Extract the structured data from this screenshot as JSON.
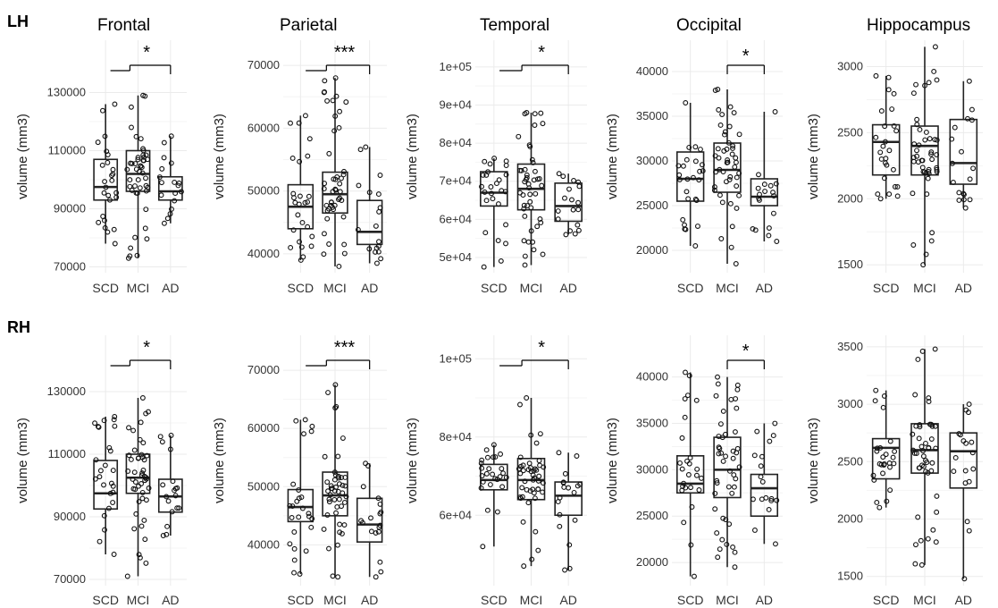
{
  "row_labels": [
    "LH",
    "RH"
  ],
  "panel_titles": [
    "Frontal",
    "Parietal",
    "Temporal",
    "Occipital",
    "Hippocampus"
  ],
  "colors": {
    "background": "#ffffff",
    "grid": "#ebebeb",
    "box": "#222222",
    "point": "#111111"
  },
  "chart_data": [
    {
      "type": "box",
      "hemisphere": "LH",
      "title": "Frontal",
      "ylabel": "volume (mm3)",
      "categories": [
        "SCD",
        "MCI",
        "AD"
      ],
      "ylim": [
        68000,
        148000
      ],
      "yticks": [
        70000,
        90000,
        110000,
        130000
      ],
      "ytick_labels": [
        "70000",
        "90000",
        "110000",
        "130000"
      ],
      "boxes": [
        {
          "min": 78000,
          "q1": 93000,
          "median": 97500,
          "q3": 107000,
          "max": 126000
        },
        {
          "min": 73000,
          "q1": 96000,
          "median": 102000,
          "q3": 110000,
          "max": 129000
        },
        {
          "min": 85000,
          "q1": 93000,
          "median": 96000,
          "q3": 101000,
          "max": 115000
        }
      ],
      "significance": {
        "label": "*",
        "bracket": "SCD+MCI vs AD"
      }
    },
    {
      "type": "box",
      "hemisphere": "LH",
      "title": "Parietal",
      "ylabel": "volume (mm3)",
      "categories": [
        "SCD",
        "MCI",
        "AD"
      ],
      "ylim": [
        37000,
        74000
      ],
      "yticks": [
        40000,
        50000,
        60000,
        70000
      ],
      "ytick_labels": [
        "40000",
        "50000",
        "60000",
        "70000"
      ],
      "boxes": [
        {
          "min": 39000,
          "q1": 44000,
          "median": 47500,
          "q3": 51000,
          "max": 62000
        },
        {
          "min": 38000,
          "q1": 46500,
          "median": 49500,
          "q3": 53000,
          "max": 68000
        },
        {
          "min": 38500,
          "q1": 41500,
          "median": 43500,
          "q3": 48500,
          "max": 57000
        }
      ],
      "significance": {
        "label": "***",
        "bracket": "SCD+MCI vs AD"
      }
    },
    {
      "type": "box",
      "hemisphere": "LH",
      "title": "Temporal",
      "ylabel": "volume (mm3)",
      "categories": [
        "SCD",
        "MCI",
        "AD"
      ],
      "ylim": [
        46000,
        107000
      ],
      "yticks": [
        50000,
        60000,
        70000,
        80000,
        90000,
        100000
      ],
      "ytick_labels": [
        "5e+04",
        "6e+04",
        "7e+04",
        "8e+04",
        "9e+04",
        "1e+05"
      ],
      "boxes": [
        {
          "min": 47500,
          "q1": 63500,
          "median": 67000,
          "q3": 72500,
          "max": 76000
        },
        {
          "min": 48000,
          "q1": 62500,
          "median": 68000,
          "q3": 74500,
          "max": 88000
        },
        {
          "min": 56000,
          "q1": 59500,
          "median": 63500,
          "q3": 69500,
          "max": 72000
        }
      ],
      "significance": {
        "label": "*",
        "bracket": "SCD+MCI vs AD"
      }
    },
    {
      "type": "box",
      "hemisphere": "LH",
      "title": "Occipital",
      "ylabel": "volume (mm3)",
      "categories": [
        "SCD",
        "MCI",
        "AD"
      ],
      "ylim": [
        17500,
        43500
      ],
      "yticks": [
        20000,
        25000,
        30000,
        35000,
        40000
      ],
      "ytick_labels": [
        "20000",
        "25000",
        "30000",
        "35000",
        "40000"
      ],
      "boxes": [
        {
          "min": 20500,
          "q1": 25500,
          "median": 28000,
          "q3": 31000,
          "max": 36500
        },
        {
          "min": 18500,
          "q1": 26500,
          "median": 29000,
          "q3": 32000,
          "max": 38000
        },
        {
          "min": 21000,
          "q1": 25000,
          "median": 26000,
          "q3": 28000,
          "max": 35500
        }
      ],
      "significance": {
        "label": "*",
        "bracket": "MCI vs AD"
      }
    },
    {
      "type": "box",
      "hemisphere": "LH",
      "title": "Hippocampus",
      "ylabel": "volume (mm3)",
      "categories": [
        "SCD",
        "MCI",
        "AD"
      ],
      "ylim": [
        1440,
        3200
      ],
      "yticks": [
        1500,
        2000,
        2500,
        3000
      ],
      "ytick_labels": [
        "1500",
        "2000",
        "2500",
        "3000"
      ],
      "boxes": [
        {
          "min": 2000,
          "q1": 2180,
          "median": 2430,
          "q3": 2560,
          "max": 2930
        },
        {
          "min": 1500,
          "q1": 2180,
          "median": 2400,
          "q3": 2550,
          "max": 3150
        },
        {
          "min": 1930,
          "q1": 2110,
          "median": 2270,
          "q3": 2600,
          "max": 2890
        }
      ]
    },
    {
      "type": "box",
      "hemisphere": "RH",
      "title": "Frontal",
      "ylabel": "volume (mm3)",
      "categories": [
        "SCD",
        "MCI",
        "AD"
      ],
      "ylim": [
        68000,
        148000
      ],
      "yticks": [
        70000,
        90000,
        110000,
        130000
      ],
      "ytick_labels": [
        "70000",
        "90000",
        "110000",
        "130000"
      ],
      "boxes": [
        {
          "min": 78000,
          "q1": 92500,
          "median": 97500,
          "q3": 108000,
          "max": 122000
        },
        {
          "min": 71000,
          "q1": 97500,
          "median": 102500,
          "q3": 110000,
          "max": 128000
        },
        {
          "min": 84000,
          "q1": 91500,
          "median": 96500,
          "q3": 102000,
          "max": 116000
        }
      ],
      "significance": {
        "label": "*",
        "bracket": "SCD+MCI vs AD"
      }
    },
    {
      "type": "box",
      "hemisphere": "RH",
      "title": "Parietal",
      "ylabel": "volume (mm3)",
      "categories": [
        "SCD",
        "MCI",
        "AD"
      ],
      "ylim": [
        33000,
        76000
      ],
      "yticks": [
        40000,
        50000,
        60000,
        70000
      ],
      "ytick_labels": [
        "40000",
        "50000",
        "60000",
        "70000"
      ],
      "boxes": [
        {
          "min": 35000,
          "q1": 44000,
          "median": 46500,
          "q3": 49500,
          "max": 61500
        },
        {
          "min": 34500,
          "q1": 45000,
          "median": 48500,
          "q3": 52500,
          "max": 67500
        },
        {
          "min": 34500,
          "q1": 40500,
          "median": 43500,
          "q3": 48000,
          "max": 54000
        }
      ],
      "significance": {
        "label": "***",
        "bracket": "SCD+MCI vs AD"
      }
    },
    {
      "type": "box",
      "hemisphere": "RH",
      "title": "Temporal",
      "ylabel": "volume (mm3)",
      "categories": [
        "SCD",
        "MCI",
        "AD"
      ],
      "ylim": [
        42000,
        106000
      ],
      "yticks": [
        60000,
        80000,
        100000
      ],
      "ytick_labels": [
        "6e+04",
        "8e+04",
        "1e+05"
      ],
      "boxes": [
        {
          "min": 52000,
          "q1": 66500,
          "median": 69000,
          "q3": 73000,
          "max": 78000
        },
        {
          "min": 47000,
          "q1": 64000,
          "median": 69000,
          "q3": 74500,
          "max": 90000
        },
        {
          "min": 46000,
          "q1": 60000,
          "median": 65000,
          "q3": 68500,
          "max": 76000
        }
      ],
      "significance": {
        "label": "*",
        "bracket": "SCD+MCI vs AD"
      }
    },
    {
      "type": "box",
      "hemisphere": "RH",
      "title": "Occipital",
      "ylabel": "volume (mm3)",
      "categories": [
        "SCD",
        "MCI",
        "AD"
      ],
      "ylim": [
        17500,
        44500
      ],
      "yticks": [
        20000,
        25000,
        30000,
        35000,
        40000
      ],
      "ytick_labels": [
        "20000",
        "25000",
        "30000",
        "35000",
        "40000"
      ],
      "boxes": [
        {
          "min": 18500,
          "q1": 27500,
          "median": 28500,
          "q3": 31500,
          "max": 40500
        },
        {
          "min": 19500,
          "q1": 27000,
          "median": 30000,
          "q3": 33500,
          "max": 40000
        },
        {
          "min": 22000,
          "q1": 25000,
          "median": 28000,
          "q3": 29500,
          "max": 35000
        }
      ],
      "significance": {
        "label": "*",
        "bracket": "MCI vs AD"
      }
    },
    {
      "type": "box",
      "hemisphere": "RH",
      "title": "Hippocampus",
      "ylabel": "volume (mm3)",
      "categories": [
        "SCD",
        "MCI",
        "AD"
      ],
      "ylim": [
        1420,
        3600
      ],
      "yticks": [
        1500,
        2000,
        2500,
        3000,
        3500
      ],
      "ytick_labels": [
        "1500",
        "2000",
        "2500",
        "3000",
        "3500"
      ],
      "boxes": [
        {
          "min": 2100,
          "q1": 2350,
          "median": 2620,
          "q3": 2700,
          "max": 3120
        },
        {
          "min": 1600,
          "q1": 2400,
          "median": 2600,
          "q3": 2830,
          "max": 3480
        },
        {
          "min": 1480,
          "q1": 2270,
          "median": 2590,
          "q3": 2750,
          "max": 3000
        }
      ]
    }
  ]
}
